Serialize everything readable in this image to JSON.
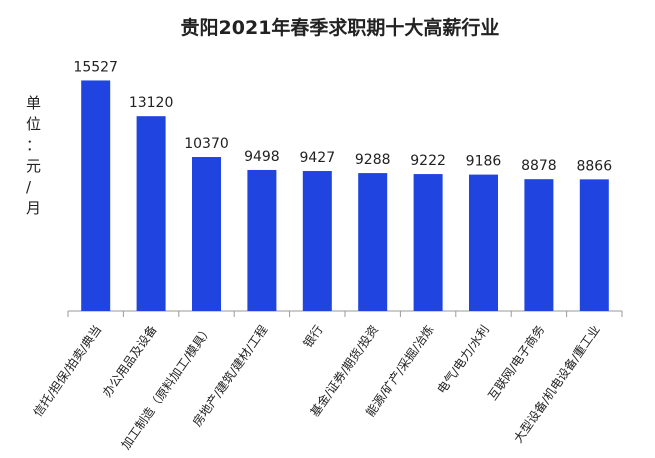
{
  "chart_data": {
    "type": "bar",
    "title": "贵阳2021年春季求职期十大高薪行业",
    "ylabel": "单位：元/月",
    "xlabel": "",
    "categories": [
      "信托/担保/拍卖/典当",
      "办公用品及设备",
      "加工制造（原料加工/模具）",
      "房地产/建筑/建材/工程",
      "银行",
      "基金/证券/期货/投资",
      "能源/矿产/采掘/冶炼",
      "电气/电力/水利",
      "互联网/电子商务",
      "大型设备/机电设备/重工业"
    ],
    "values": [
      15527,
      13120,
      10370,
      9498,
      9427,
      9288,
      9222,
      9186,
      8878,
      8866
    ],
    "ylim": [
      0,
      16500
    ],
    "grid": false,
    "legend": "none",
    "colors": {
      "bar": "#1f44e0",
      "axis": "#9a9a9a",
      "text": "#222222"
    }
  }
}
